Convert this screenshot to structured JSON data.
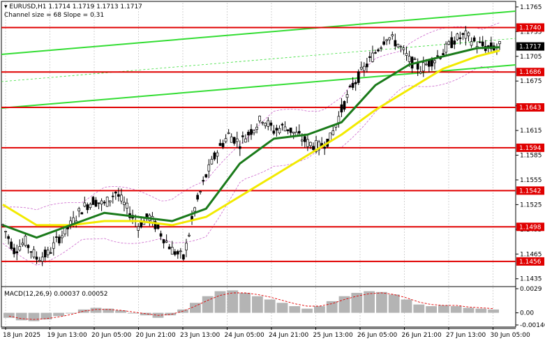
{
  "header": {
    "symbol_line": "EURUSD,H1  1.1714 1.1719 1.1713 1.1717",
    "channel_line": "Channel size = 68 Slope = 0.31"
  },
  "macd": {
    "label": "MACD(12,26,9) 0.00037 0.00052",
    "ticks": [
      "0.0029",
      "0.00",
      "-0.00146"
    ]
  },
  "colors": {
    "ma_fast": "#1a7a1a",
    "ma_slow": "#f2ea00",
    "channel": "#33dd33",
    "level": "#e00000",
    "price_tag": "#000000",
    "candle": "#000000",
    "bollinger": "#cc66cc",
    "macd_hist": "#b4b4b4",
    "macd_signal": "#e00000"
  },
  "price_scale": {
    "ticks": [
      "1.1765",
      "1.1735",
      "1.1705",
      "1.1675",
      "1.1645",
      "1.1615",
      "1.1585",
      "1.1555",
      "1.1525",
      "1.1495",
      "1.1465",
      "1.1435"
    ]
  },
  "levels": [
    "1.1740",
    "1.1686",
    "1.1643",
    "1.1594",
    "1.1542",
    "1.1498",
    "1.1456"
  ],
  "current_price": "1.1717",
  "time_axis": [
    "18 Jun 2025",
    "19 Jun 13:00",
    "20 Jun 05:00",
    "20 Jun 21:00",
    "23 Jun 13:00",
    "24 Jun 05:00",
    "24 Jun 21:00",
    "25 Jun 13:00",
    "26 Jun 05:00",
    "26 Jun 21:00",
    "27 Jun 13:00",
    "30 Jun 05:00"
  ],
  "chart_data": {
    "type": "line",
    "ylim": [
      1.1428,
      1.177
    ],
    "price_path": [
      [
        0,
        1.15
      ],
      [
        4,
        1.147
      ],
      [
        8,
        1.148
      ],
      [
        12,
        1.146
      ],
      [
        16,
        1.1465
      ],
      [
        20,
        1.1485
      ],
      [
        24,
        1.15
      ],
      [
        28,
        1.152
      ],
      [
        32,
        1.153
      ],
      [
        36,
        1.1525
      ],
      [
        40,
        1.154
      ],
      [
        44,
        1.152
      ],
      [
        48,
        1.15
      ],
      [
        52,
        1.151
      ],
      [
        56,
        1.149
      ],
      [
        60,
        1.147
      ],
      [
        64,
        1.146
      ],
      [
        68,
        1.152
      ],
      [
        72,
        1.156
      ],
      [
        76,
        1.159
      ],
      [
        80,
        1.161
      ],
      [
        84,
        1.16
      ],
      [
        88,
        1.1615
      ],
      [
        92,
        1.163
      ],
      [
        96,
        1.1615
      ],
      [
        100,
        1.162
      ],
      [
        104,
        1.161
      ],
      [
        108,
        1.16
      ],
      [
        112,
        1.1595
      ],
      [
        116,
        1.1605
      ],
      [
        120,
        1.164
      ],
      [
        124,
        1.167
      ],
      [
        128,
        1.169
      ],
      [
        132,
        1.171
      ],
      [
        136,
        1.173
      ],
      [
        140,
        1.172
      ],
      [
        144,
        1.17
      ],
      [
        148,
        1.169
      ],
      [
        152,
        1.17
      ],
      [
        156,
        1.171
      ],
      [
        160,
        1.1725
      ],
      [
        164,
        1.173
      ],
      [
        168,
        1.172
      ],
      [
        172,
        1.1715
      ],
      [
        176,
        1.1717
      ]
    ],
    "ma_fast": [
      [
        0,
        1.15
      ],
      [
        12,
        1.1485
      ],
      [
        24,
        1.15
      ],
      [
        36,
        1.1515
      ],
      [
        48,
        1.151
      ],
      [
        60,
        1.1505
      ],
      [
        72,
        1.152
      ],
      [
        84,
        1.1575
      ],
      [
        96,
        1.1605
      ],
      [
        108,
        1.161
      ],
      [
        120,
        1.1625
      ],
      [
        132,
        1.167
      ],
      [
        144,
        1.1695
      ],
      [
        156,
        1.1705
      ],
      [
        168,
        1.1715
      ],
      [
        176,
        1.1716
      ]
    ],
    "ma_slow": [
      [
        0,
        1.1525
      ],
      [
        12,
        1.15
      ],
      [
        24,
        1.15
      ],
      [
        36,
        1.1505
      ],
      [
        48,
        1.1505
      ],
      [
        60,
        1.15
      ],
      [
        72,
        1.151
      ],
      [
        84,
        1.1535
      ],
      [
        96,
        1.156
      ],
      [
        108,
        1.1585
      ],
      [
        120,
        1.161
      ],
      [
        132,
        1.164
      ],
      [
        144,
        1.1665
      ],
      [
        156,
        1.169
      ],
      [
        168,
        1.1705
      ],
      [
        176,
        1.1712
      ]
    ],
    "macd_histogram": [
      -0.0006,
      -0.0009,
      -0.001,
      -0.0008,
      -0.0004,
      0.0,
      0.0004,
      0.0006,
      0.0005,
      0.0003,
      0.0,
      -0.0003,
      -0.0006,
      -0.0003,
      0.0004,
      0.0012,
      0.002,
      0.0026,
      0.0027,
      0.0024,
      0.002,
      0.0016,
      0.0012,
      0.0008,
      0.0005,
      0.0008,
      0.0014,
      0.002,
      0.0024,
      0.0026,
      0.0025,
      0.0022,
      0.0016,
      0.001,
      0.0008,
      0.0009,
      0.0008,
      0.0006,
      0.0005,
      0.0004
    ],
    "macd_signal": [
      -0.0004,
      -0.0007,
      -0.0008,
      -0.0007,
      -0.0005,
      -0.0002,
      0.0002,
      0.0004,
      0.0004,
      0.0003,
      0.0001,
      -0.0001,
      -0.0003,
      -0.0002,
      0.0002,
      0.0008,
      0.0015,
      0.0021,
      0.0024,
      0.0024,
      0.0022,
      0.0019,
      0.0015,
      0.0011,
      0.0008,
      0.0008,
      0.0011,
      0.0016,
      0.002,
      0.0023,
      0.0024,
      0.0022,
      0.0018,
      0.0013,
      0.001,
      0.0009,
      0.0009,
      0.0007,
      0.0006,
      0.0005
    ],
    "macd_ylim": [
      -0.00146,
      0.0029
    ]
  }
}
